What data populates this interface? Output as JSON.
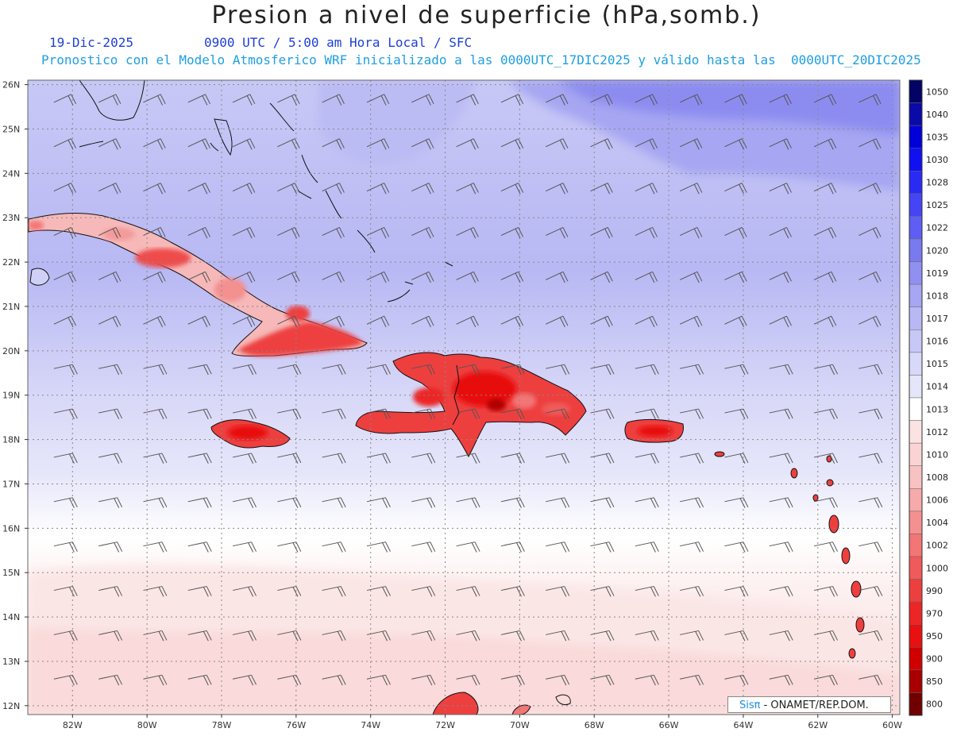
{
  "title": "Presion a nivel de superficie (hPa,somb.)",
  "date": "19-Dic-2025",
  "time_info": "0900 UTC / 5:00 am Hora Local / SFC",
  "model_info": "Pronostico con el Modelo Atmosferico WRF inicializado a las 0000UTC_17DIC2025 y válido hasta las  0000UTC_20DIC2025",
  "credit": {
    "logo": "Sisπ",
    "text": " - ONAMET/REP.DOM."
  },
  "map": {
    "lon_range": [
      -83.2,
      -59.8
    ],
    "lat_range": [
      11.8,
      26.1
    ],
    "lon_ticks": [
      "82W",
      "80W",
      "78W",
      "76W",
      "74W",
      "72W",
      "70W",
      "68W",
      "66W",
      "64W",
      "62W",
      "60W"
    ],
    "lat_ticks": [
      "12N",
      "13N",
      "14N",
      "15N",
      "16N",
      "17N",
      "18N",
      "19N",
      "20N",
      "21N",
      "22N",
      "23N",
      "24N",
      "25N",
      "26N"
    ],
    "grid": "dotted",
    "wind_barbs": true
  },
  "legend": {
    "levels": [
      "1050",
      "1040",
      "1035",
      "1030",
      "1028",
      "1025",
      "1022",
      "1020",
      "1019",
      "1018",
      "1017",
      "1016",
      "1015",
      "1014",
      "1013",
      "1012",
      "1010",
      "1008",
      "1006",
      "1004",
      "1002",
      "1000",
      "990",
      "970",
      "950",
      "900",
      "850",
      "800"
    ],
    "colors": [
      "#030366",
      "#0a0aa8",
      "#0000d8",
      "#1010f0",
      "#2a2af5",
      "#4545f5",
      "#5e5ef5",
      "#7a7af0",
      "#9090f0",
      "#a6a6f2",
      "#b8b8f4",
      "#c8c8f6",
      "#d8d8f8",
      "#e6e6fa",
      "#ffffff",
      "#fbe3e3",
      "#fad4d4",
      "#f8c2c2",
      "#f6aaaa",
      "#f59090",
      "#f37575",
      "#f05a5a",
      "#ee3f3f",
      "#ec2626",
      "#e81010",
      "#d00000",
      "#a80000",
      "#700000"
    ],
    "color_names": [
      "dark-navy",
      "navy",
      "blue",
      "blue",
      "blue",
      "blue",
      "blue",
      "periwinkle",
      "periwinkle",
      "lavender",
      "lavender",
      "lavender",
      "pale-lavender",
      "pale-lavender",
      "white",
      "pale-pink",
      "pink",
      "pink",
      "pink",
      "salmon",
      "salmon",
      "red",
      "red",
      "red",
      "red",
      "dark-red",
      "dark-red",
      "maroon"
    ]
  }
}
